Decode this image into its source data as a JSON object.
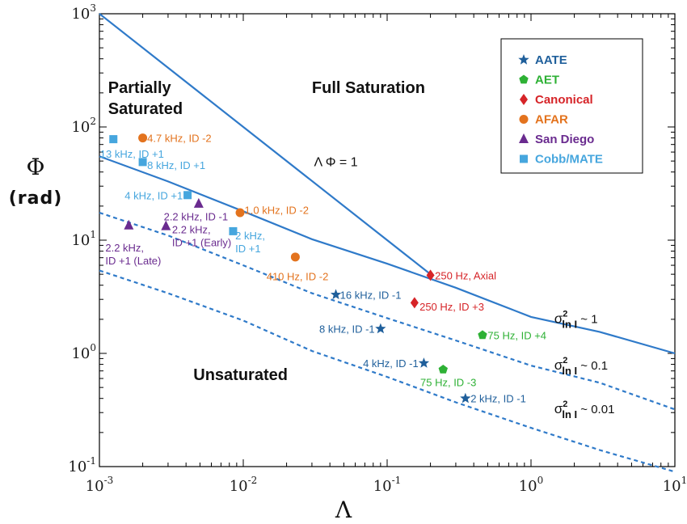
{
  "chart_data": {
    "type": "scatter",
    "x_scale": "log",
    "y_scale": "log",
    "xlim": [
      0.001,
      10
    ],
    "ylim": [
      0.1,
      1000
    ],
    "x_ticks": [
      {
        "value": 0.001,
        "base": "10",
        "exp": "-3"
      },
      {
        "value": 0.01,
        "base": "10",
        "exp": "-2"
      },
      {
        "value": 0.1,
        "base": "10",
        "exp": "-1"
      },
      {
        "value": 1,
        "base": "10",
        "exp": "0"
      },
      {
        "value": 10,
        "base": "10",
        "exp": "1"
      }
    ],
    "y_ticks": [
      {
        "value": 0.1,
        "base": "10",
        "exp": "-1"
      },
      {
        "value": 1,
        "base": "10",
        "exp": "0"
      },
      {
        "value": 10,
        "base": "10",
        "exp": "1"
      },
      {
        "value": 100,
        "base": "10",
        "exp": "2"
      },
      {
        "value": 1000,
        "base": "10",
        "exp": "3"
      }
    ],
    "xlabel": "Λ",
    "ylabel": "Φ",
    "ylabel_unit": "(rad)",
    "grid": false,
    "legend_position": "top-right",
    "regions": [
      {
        "id": "partially",
        "lines": [
          "Partially",
          "Saturated"
        ],
        "x": 0.00115,
        "y": 200
      },
      {
        "id": "full",
        "lines": [
          "Full Saturation"
        ],
        "x": 0.03,
        "y": 200
      },
      {
        "id": "unsaturated",
        "lines": [
          "Unsaturated"
        ],
        "x": 0.0045,
        "y": 0.58
      }
    ],
    "curves": [
      {
        "name": "ΛΦ = 1",
        "style": "solid",
        "label": {
          "main": "Λ Φ = 1",
          "x": 0.031,
          "y": 45
        },
        "points": [
          [
            0.001,
            1000
          ],
          [
            0.2,
            5
          ]
        ]
      },
      {
        "name": "σ²lnI ~ 1",
        "style": "solid",
        "label": {
          "sigma": "σ",
          "sup": "2",
          "sub": "ln I",
          "tail": "~ 1",
          "x": 1.45,
          "y": 1.85
        },
        "points": [
          [
            0.001,
            55
          ],
          [
            0.003,
            33
          ],
          [
            0.01,
            18
          ],
          [
            0.03,
            10.2
          ],
          [
            0.1,
            6.2
          ],
          [
            0.3,
            3.8
          ],
          [
            1,
            2.1
          ],
          [
            3,
            1.55
          ],
          [
            10,
            1.0
          ]
        ]
      },
      {
        "name": "σ²lnI ~ 0.1",
        "style": "dashed",
        "label": {
          "sigma": "σ",
          "sup": "2",
          "sub": "ln I",
          "tail": "~ 0.1",
          "x": 1.45,
          "y": 0.72
        },
        "points": [
          [
            0.001,
            17.5
          ],
          [
            0.003,
            11
          ],
          [
            0.01,
            6
          ],
          [
            0.03,
            3.4
          ],
          [
            0.1,
            2.05
          ],
          [
            0.3,
            1.3
          ],
          [
            1,
            0.78
          ],
          [
            3,
            0.55
          ],
          [
            10,
            0.32
          ]
        ]
      },
      {
        "name": "σ²lnI ~ 0.01",
        "style": "dashed",
        "label": {
          "sigma": "σ",
          "sup": "2",
          "sub": "ln I",
          "tail": "~ 0.01",
          "x": 1.45,
          "y": 0.295
        },
        "points": [
          [
            0.001,
            5.4
          ],
          [
            0.003,
            3.4
          ],
          [
            0.01,
            1.95
          ],
          [
            0.03,
            1.05
          ],
          [
            0.1,
            0.62
          ],
          [
            0.3,
            0.37
          ],
          [
            1,
            0.22
          ],
          [
            3,
            0.14
          ],
          [
            10,
            0.09
          ]
        ]
      }
    ],
    "series": [
      {
        "name": "AATE",
        "marker": "star",
        "color": "#1f5f9b",
        "points": [
          {
            "x": 0.044,
            "y": 3.3,
            "label": "16 kHz, ID -1",
            "lx": 0.047,
            "ly": 3.3,
            "anchor": "start"
          },
          {
            "x": 0.09,
            "y": 1.65,
            "label": "8 kHz, ID -1",
            "lx": 0.082,
            "ly": 1.65,
            "anchor": "end"
          },
          {
            "x": 0.18,
            "y": 0.82,
            "label": "4 kHz, ID -1",
            "lx": 0.165,
            "ly": 0.82,
            "anchor": "end"
          },
          {
            "x": 0.35,
            "y": 0.4,
            "label": "2 kHz, ID -1",
            "lx": 0.38,
            "ly": 0.4,
            "anchor": "start"
          }
        ]
      },
      {
        "name": "AET",
        "marker": "pentagon",
        "color": "#2eb135",
        "points": [
          {
            "x": 0.46,
            "y": 1.45,
            "label": "75 Hz, ID +4",
            "lx": 0.5,
            "ly": 1.45,
            "anchor": "start"
          },
          {
            "x": 0.245,
            "y": 0.72,
            "label": "75 Hz, ID -3",
            "lx": 0.17,
            "ly": 0.56,
            "anchor": "start"
          }
        ]
      },
      {
        "name": "Canonical",
        "marker": "diamond",
        "color": "#d62428",
        "points": [
          {
            "x": 0.2,
            "y": 4.9,
            "label": "250 Hz, Axial",
            "lx": 0.215,
            "ly": 4.9,
            "anchor": "start"
          },
          {
            "x": 0.155,
            "y": 2.8,
            "label": "250 Hz, ID +3",
            "lx": 0.168,
            "ly": 2.6,
            "anchor": "start"
          }
        ]
      },
      {
        "name": "AFAR",
        "marker": "circle",
        "color": "#e3731e",
        "points": [
          {
            "x": 0.002,
            "y": 80,
            "label": "4.7 kHz, ID -2",
            "lx": 0.00215,
            "ly": 80,
            "anchor": "start"
          },
          {
            "x": 0.0095,
            "y": 17.5,
            "label": "1.0 kHz, ID -2",
            "lx": 0.0102,
            "ly": 18.5,
            "anchor": "start"
          },
          {
            "x": 0.023,
            "y": 7.1,
            "label": "410 Hz, ID -2",
            "lx": 0.0145,
            "ly": 4.8,
            "anchor": "start"
          }
        ]
      },
      {
        "name": "San Diego",
        "marker": "triangle",
        "color": "#6a2b8f",
        "points": [
          {
            "x": 0.0049,
            "y": 21,
            "label": "2.2 kHz, ID -1",
            "lx": 0.0028,
            "ly": 16.2,
            "anchor": "start"
          },
          {
            "x": 0.0029,
            "y": 13.3,
            "label": "2.2 kHz, ID +1 (Early)",
            "lx": 0.0032,
            "ly": 12.5,
            "lines": [
              "2.2 kHz,",
              "ID +1 (Early)"
            ],
            "anchor": "start"
          },
          {
            "x": 0.0016,
            "y": 13.5,
            "label": "2.2 kHz, ID +1 (Late)",
            "lx": 0.0011,
            "ly": 8.6,
            "lines": [
              "2.2 kHz,",
              "ID +1 (Late)"
            ],
            "anchor": "start"
          }
        ]
      },
      {
        "name": "Cobb/MATE",
        "marker": "square",
        "color": "#46a6de",
        "points": [
          {
            "x": 0.00125,
            "y": 78,
            "label": "13 kHz, ID +1",
            "lx": 0.00101,
            "ly": 58,
            "anchor": "start"
          },
          {
            "x": 0.002,
            "y": 49,
            "label": "8 kHz, ID +1",
            "lx": 0.00215,
            "ly": 46,
            "anchor": "start"
          },
          {
            "x": 0.0041,
            "y": 25,
            "label": "4 kHz, ID +1",
            "lx": 0.0038,
            "ly": 25,
            "anchor": "end"
          },
          {
            "x": 0.0085,
            "y": 12,
            "label": "2 kHz, ID +1",
            "lx": 0.0088,
            "ly": 11,
            "lines": [
              "2 kHz,",
              "ID +1"
            ],
            "anchor": "start"
          }
        ]
      }
    ]
  }
}
